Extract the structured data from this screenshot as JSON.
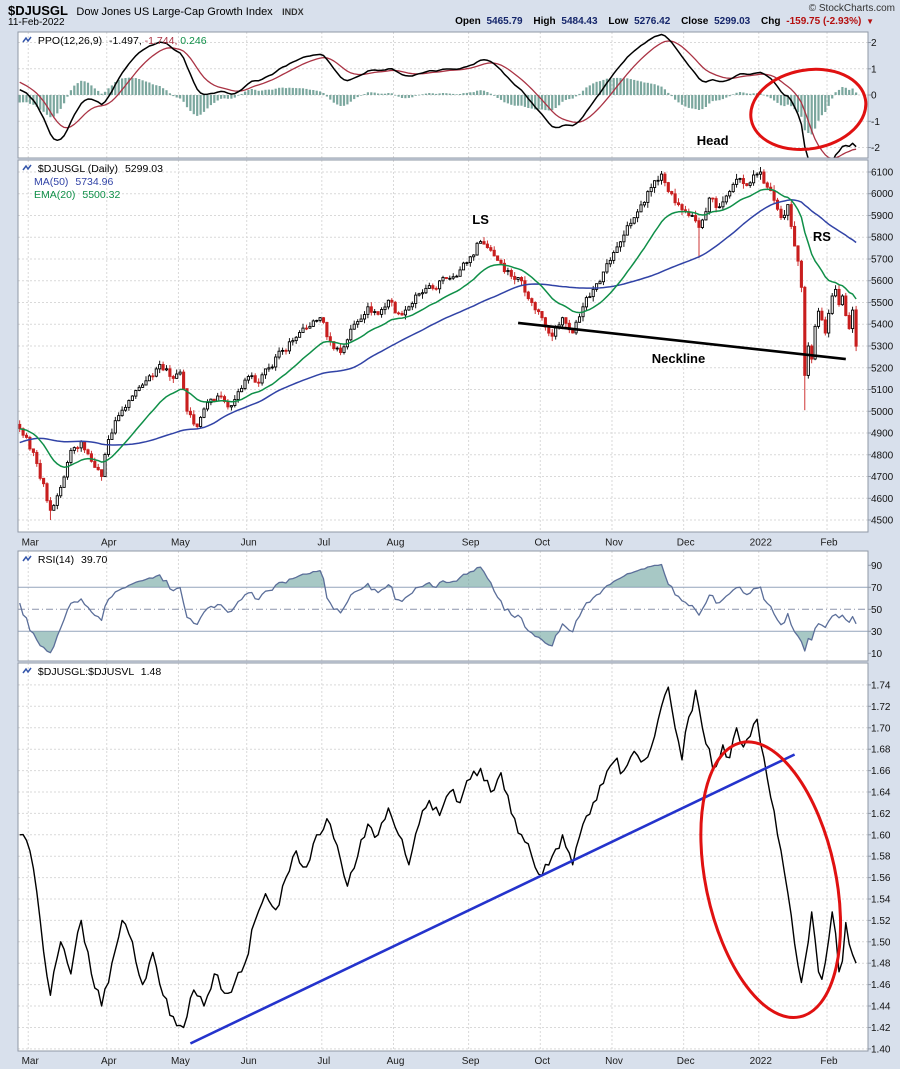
{
  "header": {
    "symbol": "$DJUSGL",
    "name": "Dow Jones US Large-Cap Growth Index",
    "exchange": "INDX",
    "date": "11-Feb-2022",
    "copyright": "© StockCharts.com",
    "quote": {
      "open_label": "Open",
      "open": "5465.79",
      "high_label": "High",
      "high": "5484.43",
      "low_label": "Low",
      "low": "5276.42",
      "close_label": "Close",
      "close": "5299.03",
      "chg_label": "Chg",
      "chg": "-159.75 (-2.93%)",
      "direction": "▼"
    }
  },
  "legends": {
    "ppo": {
      "label": "PPO(12,26,9)",
      "ppo": "-1.497,",
      "signal": "-1.744,",
      "hist": "0.246"
    },
    "price": {
      "symbol": "$DJUSGL (Daily)",
      "close": "5299.03",
      "ma": "MA(50)",
      "ma_value": "5734.96",
      "ema": "EMA(20)",
      "ema_value": "5500.32"
    },
    "rsi": {
      "label": "RSI(14)",
      "value": "39.70"
    },
    "ratio": {
      "label": "$DJUSGL:$DJUSVL",
      "value": "1.48"
    }
  },
  "colors": {
    "page_bg": "#d8e0ec",
    "panel_bg": "#ffffff",
    "grid": "#d9d9d9",
    "border": "#8f98a6",
    "candle_up": "#000000",
    "candle_down": "#c81e1e",
    "ma50": "#3143a6",
    "ema20": "#0f8f48",
    "ppo_line": "#000000",
    "ppo_signal": "#aa3344",
    "ppo_hist": "#7ba79e",
    "rsi_line": "#5b6e99",
    "rsi_fill": "#5f9b96",
    "rsi_band": "#9aa6c0",
    "rsi_mid": "#8b93ab",
    "ratio_line": "#000000",
    "trendline": "#2433cc",
    "ellipse": "#e01111",
    "neckline": "#000000"
  },
  "x_axis": {
    "total_days": 249,
    "last_day": 245,
    "months": [
      {
        "label": "Mar",
        "day": 3
      },
      {
        "label": "Apr",
        "day": 26
      },
      {
        "label": "May",
        "day": 47
      },
      {
        "label": "Jun",
        "day": 67
      },
      {
        "label": "Jul",
        "day": 89
      },
      {
        "label": "Aug",
        "day": 110
      },
      {
        "label": "Sep",
        "day": 132
      },
      {
        "label": "Oct",
        "day": 153
      },
      {
        "label": "Nov",
        "day": 174
      },
      {
        "label": "Dec",
        "day": 195
      },
      {
        "label": "2022",
        "day": 217
      },
      {
        "label": "Feb",
        "day": 237
      }
    ]
  },
  "chart_data": [
    {
      "id": "ppo",
      "type": "line_with_histogram",
      "title": "PPO (12,26,9)",
      "params": {
        "fast": 12,
        "slow": 26,
        "signal": 9
      },
      "derived_from": "price panel close series",
      "last": {
        "ppo": -1.497,
        "signal": -1.744,
        "histogram": 0.246
      },
      "y_ticks": [
        2,
        1,
        0,
        -1,
        -2
      ],
      "y_range": [
        -2.4,
        2.4
      ],
      "annotations": {
        "head_label": {
          "text": "Head",
          "day": 203,
          "value": -1.9
        },
        "ellipse": {
          "day": 231,
          "value": -0.55,
          "rx_days": 17,
          "ry": 1.5,
          "rotate": -10
        }
      }
    },
    {
      "id": "price",
      "type": "candlestick",
      "title": "$DJUSGL Daily",
      "y_ticks": [
        6100,
        6000,
        5900,
        5800,
        5700,
        5600,
        5500,
        5400,
        5300,
        5200,
        5100,
        5000,
        4900,
        4800,
        4700,
        4600,
        4500
      ],
      "y_range": [
        4445,
        6155
      ],
      "overlays": {
        "sma": 50,
        "ema": 20
      },
      "close_anchors": [
        [
          0,
          4920
        ],
        [
          2,
          4880
        ],
        [
          5,
          4760
        ],
        [
          9,
          4545
        ],
        [
          12,
          4650
        ],
        [
          15,
          4820
        ],
        [
          18,
          4860
        ],
        [
          21,
          4770
        ],
        [
          24,
          4700
        ],
        [
          26,
          4870
        ],
        [
          29,
          4980
        ],
        [
          33,
          5070
        ],
        [
          37,
          5140
        ],
        [
          41,
          5215
        ],
        [
          44,
          5160
        ],
        [
          47,
          5180
        ],
        [
          49,
          5000
        ],
        [
          52,
          4930
        ],
        [
          55,
          5040
        ],
        [
          58,
          5070
        ],
        [
          61,
          5020
        ],
        [
          64,
          5090
        ],
        [
          67,
          5160
        ],
        [
          70,
          5130
        ],
        [
          73,
          5200
        ],
        [
          77,
          5280
        ],
        [
          81,
          5340
        ],
        [
          85,
          5390
        ],
        [
          88,
          5430
        ],
        [
          91,
          5320
        ],
        [
          94,
          5270
        ],
        [
          98,
          5400
        ],
        [
          102,
          5480
        ],
        [
          105,
          5445
        ],
        [
          108,
          5510
        ],
        [
          111,
          5450
        ],
        [
          114,
          5480
        ],
        [
          117,
          5540
        ],
        [
          121,
          5565
        ],
        [
          125,
          5610
        ],
        [
          129,
          5650
        ],
        [
          132,
          5710
        ],
        [
          135,
          5780
        ],
        [
          138,
          5740
        ],
        [
          141,
          5680
        ],
        [
          144,
          5620
        ],
        [
          147,
          5600
        ],
        [
          150,
          5500
        ],
        [
          153,
          5430
        ],
        [
          156,
          5345
        ],
        [
          159,
          5430
        ],
        [
          162,
          5360
        ],
        [
          165,
          5480
        ],
        [
          168,
          5560
        ],
        [
          171,
          5640
        ],
        [
          174,
          5730
        ],
        [
          177,
          5810
        ],
        [
          180,
          5890
        ],
        [
          183,
          5960
        ],
        [
          186,
          6060
        ],
        [
          188,
          6090
        ],
        [
          190,
          6010
        ],
        [
          193,
          5950
        ],
        [
          196,
          5900
        ],
        [
          199,
          5845
        ],
        [
          202,
          5980
        ],
        [
          205,
          5940
        ],
        [
          208,
          6010
        ],
        [
          211,
          6070
        ],
        [
          214,
          6050
        ],
        [
          216,
          6090
        ],
        [
          217,
          6100
        ],
        [
          219,
          6030
        ],
        [
          221,
          5970
        ],
        [
          223,
          5890
        ],
        [
          225,
          5950
        ],
        [
          226,
          5850
        ],
        [
          227,
          5760
        ],
        [
          228,
          5690
        ],
        [
          229,
          5570
        ],
        [
          230,
          5165
        ],
        [
          231,
          5300
        ],
        [
          232,
          5240
        ],
        [
          233,
          5390
        ],
        [
          234,
          5460
        ],
        [
          235,
          5420
        ],
        [
          236,
          5360
        ],
        [
          237,
          5450
        ],
        [
          238,
          5530
        ],
        [
          239,
          5560
        ],
        [
          240,
          5490
        ],
        [
          241,
          5530
        ],
        [
          242,
          5440
        ],
        [
          243,
          5380
        ],
        [
          244,
          5465
        ],
        [
          245,
          5299.03
        ]
      ],
      "wick_overrides": [
        {
          "day": 9,
          "low": 4500
        },
        {
          "day": 199,
          "low": 5705
        },
        {
          "day": 230,
          "low": 5005
        }
      ],
      "last_ohlc": {
        "open": 5465.79,
        "high": 5484.43,
        "low": 5276.42,
        "close": 5299.03
      },
      "annotations": {
        "ls": {
          "text": "LS",
          "day": 135,
          "value": 5861
        },
        "rs": {
          "text": "RS",
          "day": 235,
          "value": 5783
        },
        "neckline_label": {
          "text": "Neckline",
          "day": 193,
          "value": 5222
        },
        "neckline": {
          "from": [
            146,
            5406
          ],
          "to": [
            242,
            5240
          ]
        }
      }
    },
    {
      "id": "rsi",
      "type": "line",
      "title": "RSI(14)",
      "params": {
        "period": 14
      },
      "derived_from": "price panel close series",
      "last": 39.7,
      "y_ticks": [
        90,
        70,
        50,
        30,
        10
      ],
      "y_range": [
        3,
        103
      ],
      "bands": {
        "overbought": 70,
        "midline": 50,
        "oversold": 30
      }
    },
    {
      "id": "ratio",
      "type": "line",
      "title": "$DJUSGL:$DJUSVL",
      "last": 1.48,
      "y_ticks": [
        1.74,
        1.72,
        1.7,
        1.68,
        1.66,
        1.64,
        1.62,
        1.6,
        1.58,
        1.56,
        1.54,
        1.52,
        1.5,
        1.48,
        1.46,
        1.44,
        1.42,
        1.4
      ],
      "y_range": [
        1.398,
        1.7605
      ],
      "anchors": [
        [
          0,
          1.6
        ],
        [
          3,
          1.585
        ],
        [
          6,
          1.52
        ],
        [
          9,
          1.45
        ],
        [
          12,
          1.5
        ],
        [
          15,
          1.47
        ],
        [
          18,
          1.52
        ],
        [
          21,
          1.47
        ],
        [
          24,
          1.44
        ],
        [
          27,
          1.48
        ],
        [
          30,
          1.52
        ],
        [
          33,
          1.5
        ],
        [
          36,
          1.46
        ],
        [
          39,
          1.49
        ],
        [
          42,
          1.45
        ],
        [
          45,
          1.43
        ],
        [
          48,
          1.42
        ],
        [
          51,
          1.455
        ],
        [
          54,
          1.44
        ],
        [
          57,
          1.47
        ],
        [
          60,
          1.452
        ],
        [
          63,
          1.462
        ],
        [
          66,
          1.48
        ],
        [
          69,
          1.52
        ],
        [
          72,
          1.545
        ],
        [
          75,
          1.53
        ],
        [
          78,
          1.56
        ],
        [
          81,
          1.585
        ],
        [
          84,
          1.57
        ],
        [
          87,
          1.6
        ],
        [
          90,
          1.615
        ],
        [
          93,
          1.59
        ],
        [
          96,
          1.552
        ],
        [
          99,
          1.58
        ],
        [
          102,
          1.61
        ],
        [
          105,
          1.6
        ],
        [
          108,
          1.625
        ],
        [
          111,
          1.6
        ],
        [
          114,
          1.572
        ],
        [
          117,
          1.61
        ],
        [
          120,
          1.632
        ],
        [
          123,
          1.618
        ],
        [
          126,
          1.64
        ],
        [
          129,
          1.63
        ],
        [
          132,
          1.652
        ],
        [
          135,
          1.662
        ],
        [
          138,
          1.64
        ],
        [
          141,
          1.658
        ],
        [
          144,
          1.62
        ],
        [
          147,
          1.6
        ],
        [
          150,
          1.58
        ],
        [
          153,
          1.562
        ],
        [
          156,
          1.58
        ],
        [
          159,
          1.6
        ],
        [
          162,
          1.572
        ],
        [
          165,
          1.61
        ],
        [
          168,
          1.63
        ],
        [
          171,
          1.648
        ],
        [
          174,
          1.668
        ],
        [
          177,
          1.66
        ],
        [
          180,
          1.678
        ],
        [
          183,
          1.67
        ],
        [
          186,
          1.692
        ],
        [
          188,
          1.72
        ],
        [
          190,
          1.738
        ],
        [
          192,
          1.7
        ],
        [
          194,
          1.67
        ],
        [
          196,
          1.71
        ],
        [
          198,
          1.735
        ],
        [
          200,
          1.7
        ],
        [
          203,
          1.662
        ],
        [
          206,
          1.684
        ],
        [
          208,
          1.672
        ],
        [
          210,
          1.7
        ],
        [
          212,
          1.682
        ],
        [
          214,
          1.692
        ],
        [
          216,
          1.708
        ],
        [
          218,
          1.672
        ],
        [
          220,
          1.635
        ],
        [
          222,
          1.6
        ],
        [
          224,
          1.565
        ],
        [
          226,
          1.525
        ],
        [
          228,
          1.478
        ],
        [
          229,
          1.462
        ],
        [
          231,
          1.5
        ],
        [
          232,
          1.528
        ],
        [
          233,
          1.502
        ],
        [
          234,
          1.472
        ],
        [
          235,
          1.465
        ],
        [
          237,
          1.502
        ],
        [
          238,
          1.528
        ],
        [
          239,
          1.508
        ],
        [
          240,
          1.472
        ],
        [
          241,
          1.482
        ],
        [
          242,
          1.518
        ],
        [
          243,
          1.498
        ],
        [
          244,
          1.488
        ],
        [
          245,
          1.48
        ]
      ],
      "annotations": {
        "trendline": {
          "from": [
            50,
            1.405
          ],
          "to": [
            227,
            1.675
          ]
        },
        "ellipse": {
          "day": 220,
          "value": 1.558,
          "rx_days": 19,
          "ry": 0.131,
          "rotate": -12
        }
      }
    }
  ]
}
